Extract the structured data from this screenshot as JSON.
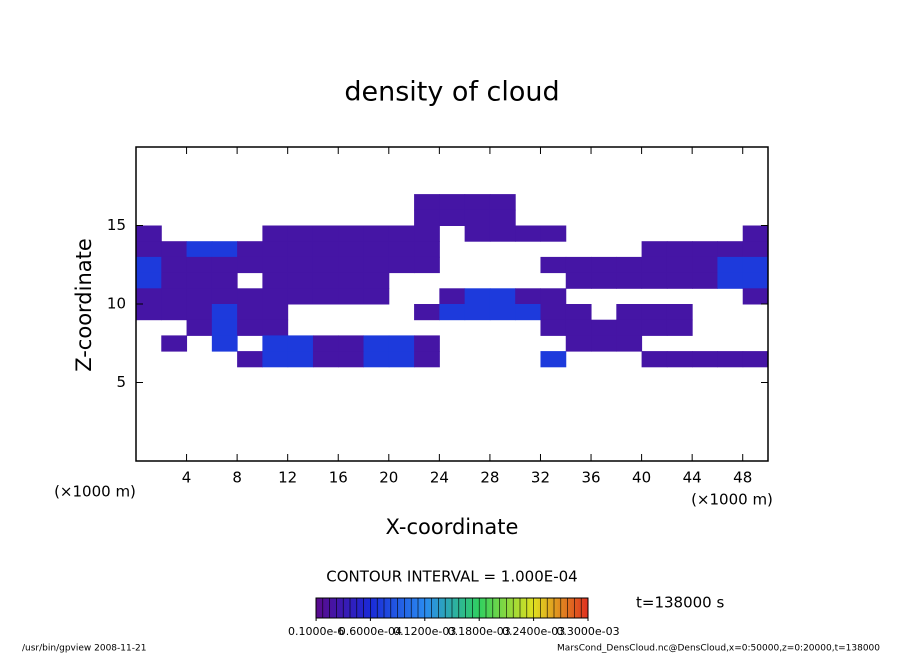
{
  "chart_data": {
    "type": "heatmap",
    "title": "density of cloud",
    "xlabel": "X-coordinate",
    "ylabel": "Z-coordinate",
    "x_unit_labels": [
      "(×1000 m)",
      "(×1000 m)"
    ],
    "contour_note": "CONTOUR INTERVAL = 1.000E-04",
    "time_label": "t=138000 s",
    "footer_left": "/usr/bin/gpview   2008-11-21",
    "footer_right": "MarsCond_DensCloud.nc@DensCloud,x=0:50000,z=0:20000,t=138000",
    "xlim": [
      0,
      50
    ],
    "ylim": [
      0,
      20
    ],
    "xticks": [
      4,
      8,
      12,
      16,
      20,
      24,
      28,
      32,
      36,
      40,
      44,
      48
    ],
    "yticks": [
      5,
      10,
      15
    ],
    "x": [
      1,
      3,
      5,
      7,
      9,
      11,
      13,
      15,
      17,
      19,
      21,
      23,
      25,
      27,
      29,
      31,
      33,
      35,
      37,
      39,
      41,
      43,
      45,
      47,
      49
    ],
    "y": [
      16.5,
      15.5,
      14.5,
      13.5,
      12.5,
      11.5,
      10.5,
      9.5,
      8.5,
      7.5,
      6.5,
      5.5
    ],
    "values": [
      [
        null,
        null,
        null,
        null,
        null,
        null,
        null,
        null,
        null,
        null,
        null,
        2e-05,
        2e-05,
        2e-05,
        2e-05,
        null,
        null,
        null,
        null,
        null,
        null,
        null,
        null,
        null,
        null
      ],
      [
        null,
        null,
        null,
        null,
        null,
        null,
        null,
        null,
        null,
        null,
        null,
        2e-05,
        2e-05,
        2e-05,
        2e-05,
        null,
        null,
        null,
        null,
        null,
        null,
        null,
        null,
        null,
        null
      ],
      [
        2e-05,
        null,
        null,
        null,
        null,
        2e-05,
        2e-05,
        2e-05,
        2e-05,
        2e-05,
        2e-05,
        2e-05,
        null,
        2e-05,
        2e-05,
        2e-05,
        2e-05,
        null,
        null,
        null,
        null,
        null,
        null,
        null,
        2e-05
      ],
      [
        2e-05,
        2e-05,
        7e-05,
        7e-05,
        2e-05,
        2e-05,
        2e-05,
        2e-05,
        2e-05,
        2e-05,
        2e-05,
        2e-05,
        null,
        null,
        null,
        null,
        null,
        null,
        null,
        null,
        2e-05,
        2e-05,
        2e-05,
        2e-05,
        2e-05
      ],
      [
        7e-05,
        2e-05,
        2e-05,
        2e-05,
        2e-05,
        2e-05,
        2e-05,
        2e-05,
        2e-05,
        2e-05,
        2e-05,
        2e-05,
        null,
        null,
        null,
        null,
        2e-05,
        2e-05,
        2e-05,
        2e-05,
        2e-05,
        2e-05,
        2e-05,
        7e-05,
        7e-05
      ],
      [
        7e-05,
        2e-05,
        2e-05,
        2e-05,
        null,
        2e-05,
        2e-05,
        2e-05,
        2e-05,
        2e-05,
        null,
        null,
        null,
        null,
        null,
        null,
        null,
        2e-05,
        2e-05,
        2e-05,
        2e-05,
        2e-05,
        2e-05,
        7e-05,
        7e-05
      ],
      [
        2e-05,
        2e-05,
        2e-05,
        2e-05,
        2e-05,
        2e-05,
        2e-05,
        2e-05,
        2e-05,
        2e-05,
        null,
        null,
        2e-05,
        7e-05,
        7e-05,
        2e-05,
        2e-05,
        null,
        null,
        null,
        null,
        null,
        null,
        null,
        2e-05
      ],
      [
        2e-05,
        2e-05,
        2e-05,
        7e-05,
        2e-05,
        2e-05,
        null,
        null,
        null,
        null,
        null,
        2e-05,
        7e-05,
        7e-05,
        7e-05,
        7e-05,
        2e-05,
        2e-05,
        null,
        2e-05,
        2e-05,
        2e-05,
        null,
        null,
        null
      ],
      [
        null,
        null,
        2e-05,
        7e-05,
        2e-05,
        2e-05,
        null,
        null,
        null,
        null,
        null,
        null,
        null,
        null,
        null,
        null,
        2e-05,
        2e-05,
        2e-05,
        2e-05,
        2e-05,
        2e-05,
        null,
        null,
        null
      ],
      [
        null,
        2e-05,
        null,
        7e-05,
        null,
        7e-05,
        7e-05,
        2e-05,
        2e-05,
        7e-05,
        7e-05,
        2e-05,
        null,
        null,
        null,
        null,
        null,
        2e-05,
        2e-05,
        2e-05,
        null,
        null,
        null,
        null,
        null
      ],
      [
        null,
        null,
        null,
        null,
        2e-05,
        7e-05,
        7e-05,
        2e-05,
        2e-05,
        7e-05,
        7e-05,
        2e-05,
        null,
        null,
        null,
        null,
        7e-05,
        null,
        null,
        null,
        2e-05,
        2e-05,
        2e-05,
        2e-05,
        2e-05
      ],
      [
        null,
        null,
        null,
        null,
        null,
        null,
        null,
        null,
        null,
        null,
        null,
        null,
        null,
        null,
        null,
        null,
        null,
        null,
        null,
        null,
        null,
        null,
        null,
        null,
        null
      ]
    ],
    "clim": [
      0,
      0.0003
    ],
    "colormap": [
      "#5a0a8c",
      "#1a2ad8",
      "#2a8af0",
      "#30d060",
      "#e0e020",
      "#e03020"
    ],
    "colorbar_ticks": [
      {
        "value": 1e-07,
        "label": "0.1000e-6"
      },
      {
        "value": 6e-05,
        "label": "0.6000e-04"
      },
      {
        "value": 0.00012,
        "label": "0.1200e-03"
      },
      {
        "value": 0.00018,
        "label": "0.1800e-03"
      },
      {
        "value": 0.00024,
        "label": "0.2400e-03"
      },
      {
        "value": 0.0003,
        "label": "0.3000e-03"
      }
    ]
  }
}
